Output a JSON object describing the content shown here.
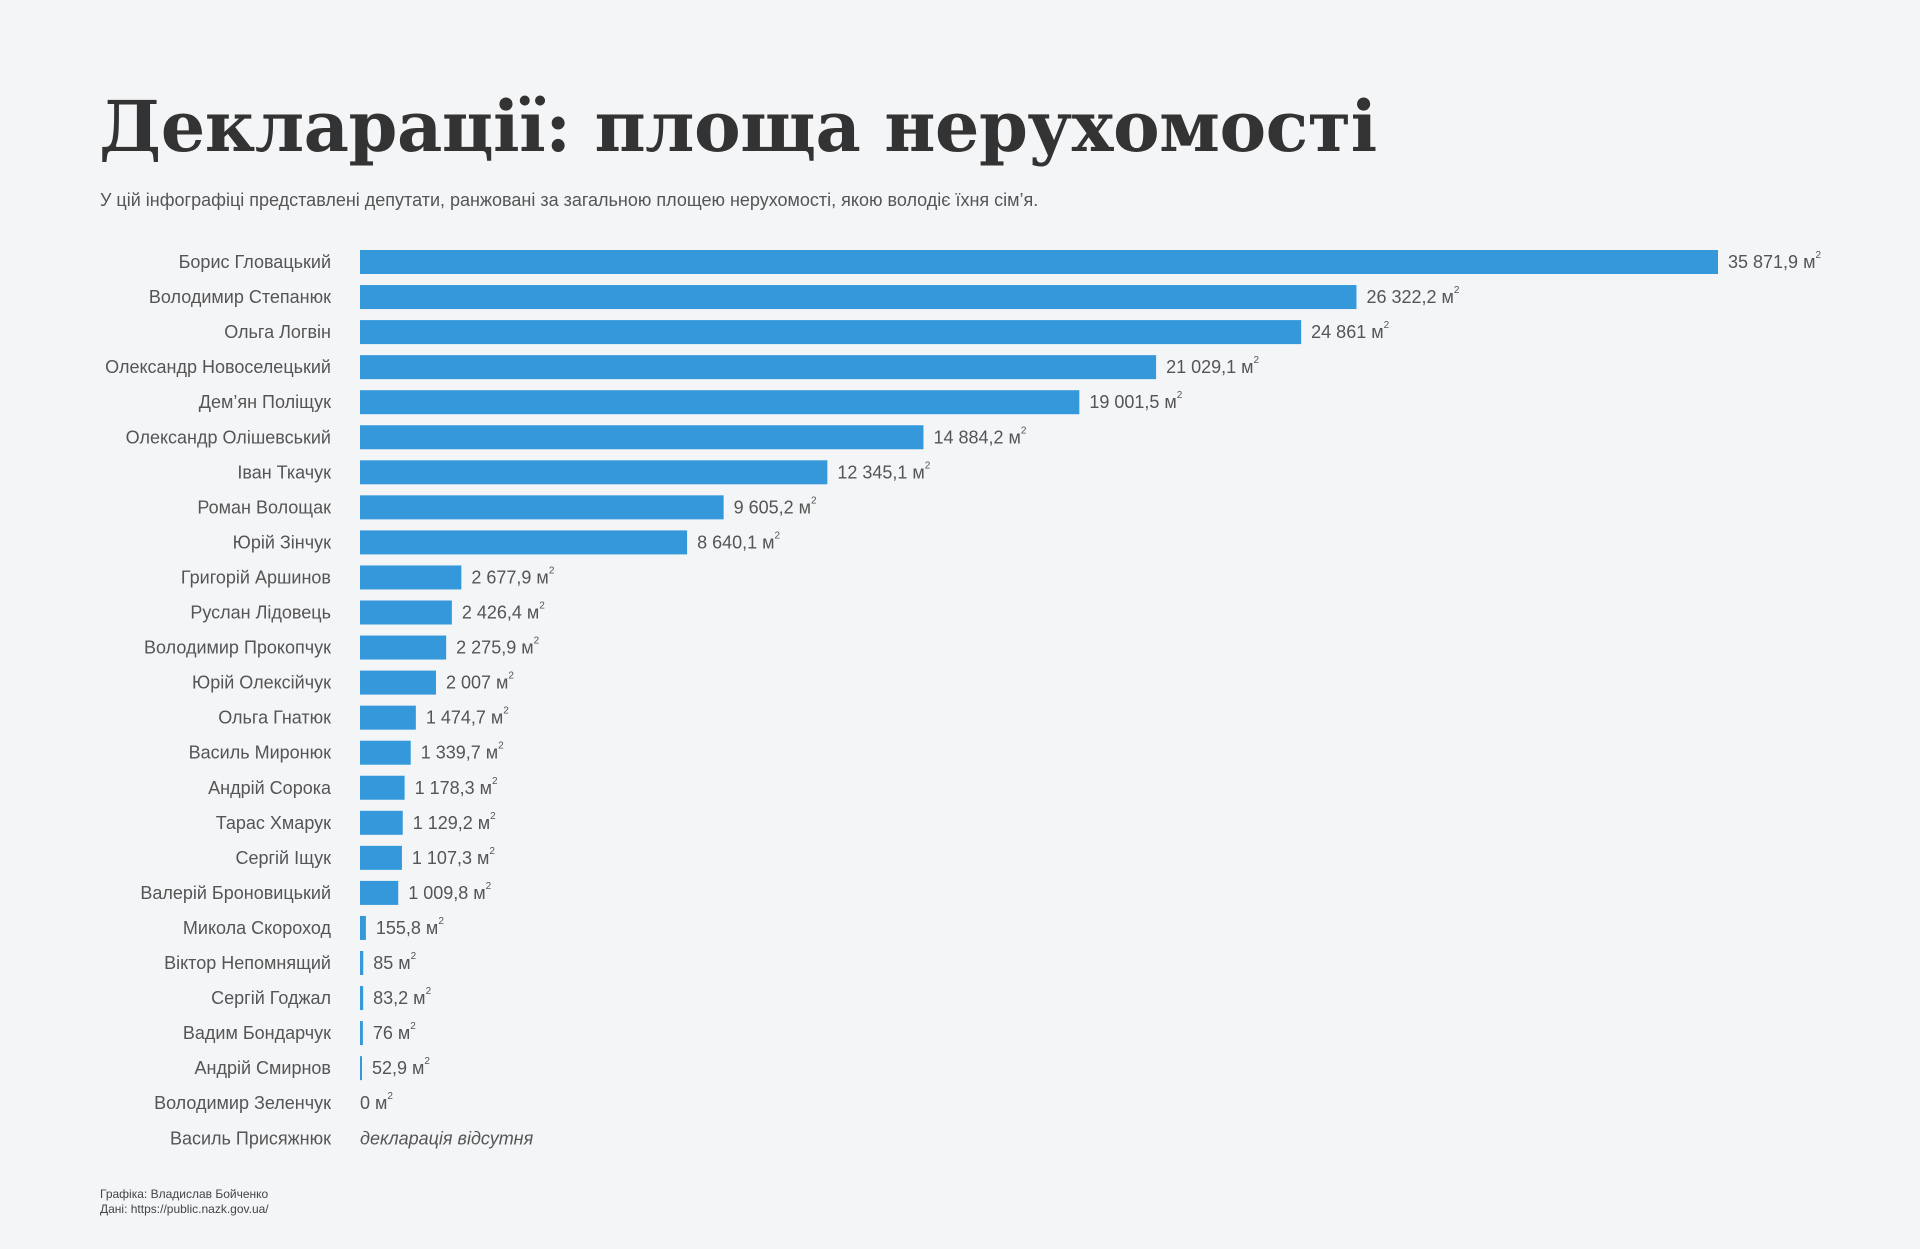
{
  "header": {
    "title": "Декларації: площа нерухомості",
    "subtitle": "У цій інфографіці представлені депутати, ранжовані за загальною площею нерухомості, якою володіє їхня сім’я."
  },
  "credits": {
    "graphics": "Графіка: Владислав Бойченко",
    "data_source": "Дані: https://public.nazk.gov.ua/"
  },
  "colors": {
    "bar": "#3498db",
    "background": "#f4f5f7",
    "text": "#555555",
    "title": "#333333"
  },
  "chart_data": {
    "type": "bar",
    "orientation": "horizontal",
    "title": "Декларації: площа нерухомості",
    "unit_label": "м",
    "unit_superscript": "2",
    "xlim": [
      0,
      35871.9
    ],
    "categories": [
      "Борис Гловацький",
      "Володимир Степанюк",
      "Ольга Логвін",
      "Олександр Новоселецький",
      "Дем’ян Поліщук",
      "Олександр Олішевський",
      "Іван Ткачук",
      "Роман Волощак",
      "Юрій Зінчук",
      "Григорій Аршинов",
      "Руслан Лідовець",
      "Володимир Прокопчук",
      "Юрій Олексійчук",
      "Ольга Гнатюк",
      "Василь Миронюк",
      "Андрій Сорока",
      "Тарас Хмарук",
      "Сергій Іщук",
      "Валерій Броновицький",
      "Микола Скороход",
      "Віктор Непомнящий",
      "Сергій Годжал",
      "Вадим Бондарчук",
      "Андрій Смирнов",
      "Володимир Зеленчук",
      "Василь Присяжнюк"
    ],
    "values": [
      35871.9,
      26322.2,
      24861,
      21029.1,
      19001.5,
      14884.2,
      12345.1,
      9605.2,
      8640.1,
      2677.9,
      2426.4,
      2275.9,
      2007,
      1474.7,
      1339.7,
      1178.3,
      1129.2,
      1107.3,
      1009.8,
      155.8,
      85,
      83.2,
      76,
      52.9,
      0,
      null
    ],
    "value_labels": [
      "35 871,9 м",
      "26 322,2 м",
      "24 861 м",
      "21 029,1 м",
      "19 001,5 м",
      "14 884,2 м",
      "12 345,1 м",
      "9 605,2 м",
      "8 640,1 м",
      "2 677,9 м",
      "2 426,4 м",
      "2 275,9 м",
      "2 007 м",
      "1 474,7 м",
      "1 339,7 м",
      "1 178,3 м",
      "1 129,2 м",
      "1 107,3 м",
      "1 009,8 м",
      "155,8 м",
      "85 м",
      "83,2 м",
      "76 м",
      "52,9 м",
      "0 м",
      "декларація відсутня"
    ]
  }
}
